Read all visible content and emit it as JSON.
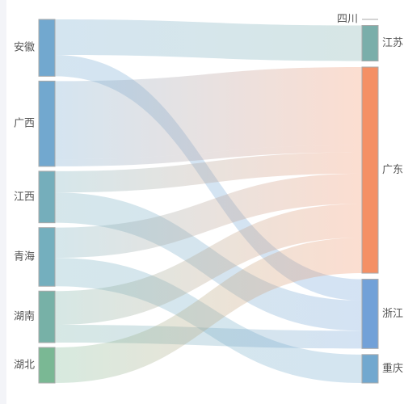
{
  "chart_data": {
    "type": "sankey",
    "title": "",
    "colors": {
      "安徽": "#72a8cf",
      "广西": "#72a8cf",
      "江西": "#75aebb",
      "青海": "#74afbe",
      "湖南": "#77b1a7",
      "湖北": "#7ab894",
      "四川": "#72a8cf",
      "江苏": "#7aaeaa",
      "广东": "#f49065",
      "浙江": "#72a1d8",
      "重庆": "#72a8cf",
      "node_border": "#aaaaaa",
      "label": "#555555"
    },
    "left_nodes": [
      "安徽",
      "广西",
      "江西",
      "青海",
      "湖南",
      "湖北"
    ],
    "right_nodes": [
      "四川",
      "江苏",
      "广东",
      "浙江",
      "重庆"
    ],
    "links": [
      {
        "source": "安徽",
        "target": "江苏",
        "value": 20
      },
      {
        "source": "安徽",
        "target": "浙江",
        "value": 12
      },
      {
        "source": "广西",
        "target": "广东",
        "value": 44
      },
      {
        "source": "广西",
        "target": "广东",
        "value": 4
      },
      {
        "source": "江西",
        "target": "广东",
        "value": 12
      },
      {
        "source": "江西",
        "target": "浙江",
        "value": 17
      },
      {
        "source": "青海",
        "target": "广东",
        "value": 17
      },
      {
        "source": "青海",
        "target": "重庆",
        "value": 16
      },
      {
        "source": "湖南",
        "target": "广东",
        "value": 19
      },
      {
        "source": "湖南",
        "target": "浙江",
        "value": 10
      },
      {
        "source": "湖北",
        "target": "广东",
        "value": 20
      }
    ]
  }
}
